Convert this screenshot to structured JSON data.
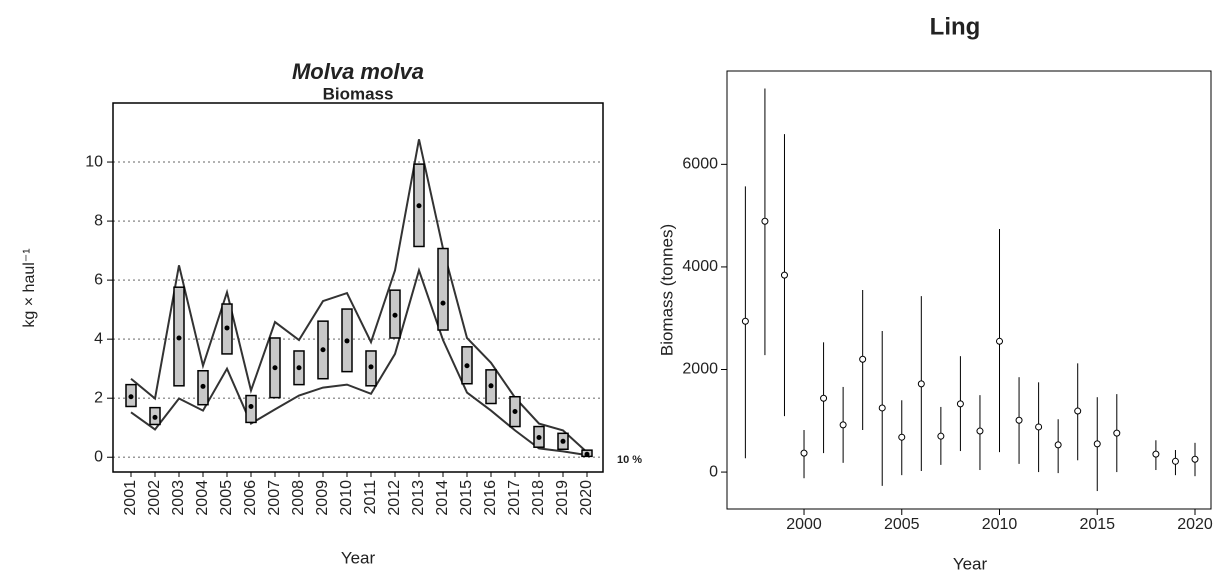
{
  "chart_data": [
    {
      "type": "box",
      "title": "Molva molva",
      "subtitle": "Biomass",
      "x_label": "Year",
      "y_label": "kg × haul⁻¹",
      "annotation": "10 %",
      "categories": [
        "2001",
        "2002",
        "2003",
        "2004",
        "2005",
        "2006",
        "2007",
        "2008",
        "2009",
        "2010",
        "2011",
        "2012",
        "2013",
        "2014",
        "2015",
        "2016",
        "2017",
        "2018",
        "2019",
        "2020"
      ],
      "values": [
        2.05,
        1.35,
        4.04,
        2.4,
        4.38,
        1.72,
        3.03,
        3.03,
        3.64,
        3.94,
        3.06,
        4.81,
        8.52,
        5.22,
        3.1,
        2.42,
        1.55,
        0.67,
        0.54,
        0.1
      ],
      "box_low": [
        1.72,
        1.11,
        2.42,
        1.78,
        3.5,
        1.18,
        2.02,
        2.46,
        2.66,
        2.9,
        2.42,
        4.04,
        7.14,
        4.31,
        2.49,
        1.82,
        1.04,
        0.34,
        0.27,
        0.03
      ],
      "box_high": [
        2.46,
        1.68,
        5.76,
        2.93,
        5.19,
        2.09,
        4.04,
        3.6,
        4.61,
        5.02,
        3.6,
        5.66,
        9.93,
        7.07,
        3.74,
        2.96,
        2.05,
        1.04,
        0.81,
        0.24
      ],
      "upper": [
        2.66,
        1.99,
        6.5,
        3.1,
        5.59,
        2.26,
        4.58,
        3.97,
        5.29,
        5.56,
        3.9,
        6.33,
        10.77,
        7.07,
        4.04,
        3.2,
        2.02,
        1.14,
        0.91,
        0.17
      ],
      "lower": [
        1.52,
        0.94,
        1.99,
        1.58,
        3.0,
        1.14,
        1.62,
        2.09,
        2.36,
        2.46,
        2.15,
        3.5,
        6.33,
        3.97,
        2.19,
        1.58,
        0.91,
        0.3,
        0.2,
        0.07
      ],
      "box_color": "#c8c8c8",
      "color": "#000000",
      "line_color": "#333333",
      "ylim": [
        -0.5,
        12
      ],
      "yticks": [
        0,
        2,
        4,
        6,
        8,
        10
      ],
      "grid": true
    },
    {
      "type": "errorbar",
      "title": "Ling",
      "x_label": "Year",
      "y_label": "Biomass (tonnes)",
      "x": [
        1997,
        1998,
        1999,
        2000,
        2001,
        2002,
        2003,
        2004,
        2005,
        2006,
        2007,
        2008,
        2009,
        2010,
        2011,
        2012,
        2013,
        2014,
        2015,
        2016,
        2018,
        2019,
        2020
      ],
      "values": [
        2940,
        4890,
        3840,
        370,
        1440,
        920,
        2200,
        1250,
        680,
        1720,
        700,
        1330,
        800,
        2550,
        1010,
        880,
        530,
        1190,
        550,
        760,
        350,
        210,
        250
      ],
      "lower": [
        270,
        2280,
        1090,
        -120,
        370,
        180,
        820,
        -270,
        -60,
        20,
        140,
        410,
        40,
        390,
        160,
        0,
        -20,
        230,
        -370,
        0,
        40,
        -60,
        -80
      ],
      "upper": [
        5570,
        7480,
        6590,
        820,
        2530,
        1660,
        3550,
        2750,
        1400,
        3430,
        1270,
        2260,
        1500,
        4740,
        1850,
        1750,
        1030,
        2120,
        1460,
        1520,
        620,
        430,
        570
      ],
      "color": "#000000",
      "xlim": [
        1996.06,
        2020.87
      ],
      "xticks": [
        2000,
        2005,
        2010,
        2015,
        2020
      ],
      "ylim": [
        -720,
        7820
      ],
      "yticks": [
        0,
        2000,
        4000,
        6000
      ],
      "grid": false
    }
  ]
}
